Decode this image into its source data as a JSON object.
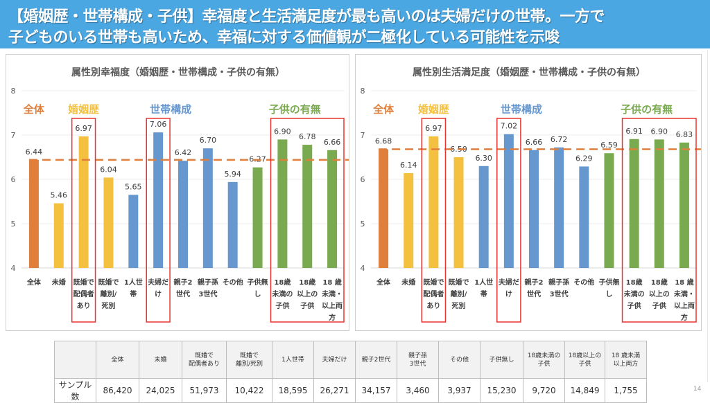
{
  "header": {
    "line1": "【婚姻歴・世帯構成・子供】幸福度と生活満足度が最も高いのは夫婦だけの世帯。一方で",
    "line2": "子どものいる世帯も高いため、幸福に対する価値観が二極化している可能性を示唆",
    "background": "#4ba7e2"
  },
  "colors": {
    "total": "#e07f3c",
    "marital": "#f3c13f",
    "household": "#6698cf",
    "children": "#7aaa50",
    "highlight_box": "#e8322f",
    "reference_line": "#e8823a"
  },
  "chart_data": [
    {
      "type": "bar",
      "title": "属性別幸福度（婚姻歴・世帯構成・子供の有無）",
      "xlabel": "",
      "ylabel": "",
      "ylim": [
        4,
        8
      ],
      "yticks": [
        4,
        5,
        6,
        7,
        8
      ],
      "grid": true,
      "categories": [
        "全体",
        "未婚",
        "既婚で配偶者あり",
        "既婚で離別/死別",
        "1人世帯",
        "夫婦だけ",
        "親子2世代",
        "親子孫3世代",
        "その他",
        "子供無し",
        "18歳未満の子供",
        "18歳以上の子供",
        "18 歳未満・以上両方"
      ],
      "category_labels": [
        [
          "全体"
        ],
        [
          "未婚"
        ],
        [
          "既婚で",
          "配偶者",
          "あり"
        ],
        [
          "既婚で",
          "離別/",
          "死別"
        ],
        [
          "1人世",
          "帯"
        ],
        [
          "夫婦だ",
          "け"
        ],
        [
          "親子2",
          "世代"
        ],
        [
          "親子孫",
          "3世代"
        ],
        [
          "その他"
        ],
        [
          "子供無",
          "し"
        ],
        [
          "18歳",
          "未満の",
          "子供"
        ],
        [
          "18歳",
          "以上の",
          "子供"
        ],
        [
          "18 歳",
          "未満・",
          "以上両",
          "方"
        ]
      ],
      "values": [
        6.44,
        5.46,
        6.97,
        6.04,
        5.65,
        7.06,
        6.42,
        6.7,
        5.94,
        6.27,
        6.9,
        6.78,
        6.66
      ],
      "value_labels": [
        "6.44",
        "5.46",
        "6.97",
        "6.04",
        "5.65",
        "7.06",
        "6.42",
        "6.70",
        "5.94",
        "6.27",
        "6.90",
        "6.78",
        "6.66"
      ],
      "groups": [
        "total",
        "marital",
        "marital",
        "marital",
        "household",
        "household",
        "household",
        "household",
        "household",
        "children",
        "children",
        "children",
        "children"
      ],
      "group_labels": [
        {
          "text": "全体",
          "group": "total"
        },
        {
          "text": "婚姻歴",
          "group": "marital"
        },
        {
          "text": "世帯構成",
          "group": "household"
        },
        {
          "text": "子供の有無",
          "group": "children"
        }
      ],
      "reference_line": 6.44,
      "highlight_ranges": [
        [
          2,
          2
        ],
        [
          5,
          5
        ],
        [
          10,
          12
        ]
      ]
    },
    {
      "type": "bar",
      "title": "属性別生活満足度（婚姻歴・世帯構成・子供の有無）",
      "xlabel": "",
      "ylabel": "",
      "ylim": [
        4,
        8
      ],
      "yticks": [
        4,
        5,
        6,
        7,
        8
      ],
      "grid": true,
      "categories": [
        "全体",
        "未婚",
        "既婚で配偶者あり",
        "既婚で離別/死別",
        "1人世帯",
        "夫婦だけ",
        "親子2世代",
        "親子孫3世代",
        "その他",
        "子供無し",
        "18歳未満の子供",
        "18歳以上の子供",
        "18 歳未満・以上両方"
      ],
      "category_labels": [
        [
          "全体"
        ],
        [
          "未婚"
        ],
        [
          "既婚で",
          "配偶者",
          "あり"
        ],
        [
          "既婚で",
          "離別/",
          "死別"
        ],
        [
          "1人世",
          "帯"
        ],
        [
          "夫婦だ",
          "け"
        ],
        [
          "親子2",
          "世代"
        ],
        [
          "親子孫",
          "3世代"
        ],
        [
          "その他"
        ],
        [
          "子供無",
          "し"
        ],
        [
          "18歳",
          "未満の",
          "子供"
        ],
        [
          "18歳",
          "以上の",
          "子供"
        ],
        [
          "18 歳",
          "未満・",
          "以上両",
          "方"
        ]
      ],
      "values": [
        6.68,
        6.14,
        6.97,
        6.5,
        6.3,
        7.02,
        6.66,
        6.72,
        6.29,
        6.59,
        6.91,
        6.9,
        6.83
      ],
      "value_labels": [
        "6.68",
        "6.14",
        "6.97",
        "6.50",
        "6.30",
        "7.02",
        "6.66",
        "6.72",
        "6.29",
        "6.59",
        "6.91",
        "6.90",
        "6.83"
      ],
      "groups": [
        "total",
        "marital",
        "marital",
        "marital",
        "household",
        "household",
        "household",
        "household",
        "household",
        "children",
        "children",
        "children",
        "children"
      ],
      "group_labels": [
        {
          "text": "全体",
          "group": "total"
        },
        {
          "text": "婚姻歴",
          "group": "marital"
        },
        {
          "text": "世帯構成",
          "group": "household"
        },
        {
          "text": "子供の有無",
          "group": "children"
        }
      ],
      "reference_line": 6.68,
      "highlight_ranges": [
        [
          2,
          2
        ],
        [
          5,
          5
        ],
        [
          10,
          12
        ]
      ]
    }
  ],
  "sample_table": {
    "row_label": "サンプル数",
    "headers": [
      [
        "全体"
      ],
      [
        "未婚"
      ],
      [
        "既婚で",
        "配偶者あり"
      ],
      [
        "既婚で",
        "離別/死別"
      ],
      [
        "1人世帯"
      ],
      [
        "夫婦だけ"
      ],
      [
        "親子2世代"
      ],
      [
        "親子孫",
        "3世代"
      ],
      [
        "その他"
      ],
      [
        "子供無し"
      ],
      [
        "18歳未満の",
        "子供"
      ],
      [
        "18歳以上の",
        "子供"
      ],
      [
        "18 歳未満",
        "以上両方"
      ]
    ],
    "values": [
      "86,420",
      "24,025",
      "51,973",
      "10,422",
      "18,595",
      "26,271",
      "34,157",
      "3,460",
      "3,937",
      "15,230",
      "9,720",
      "14,849",
      "1,755"
    ]
  },
  "page_number": "14"
}
